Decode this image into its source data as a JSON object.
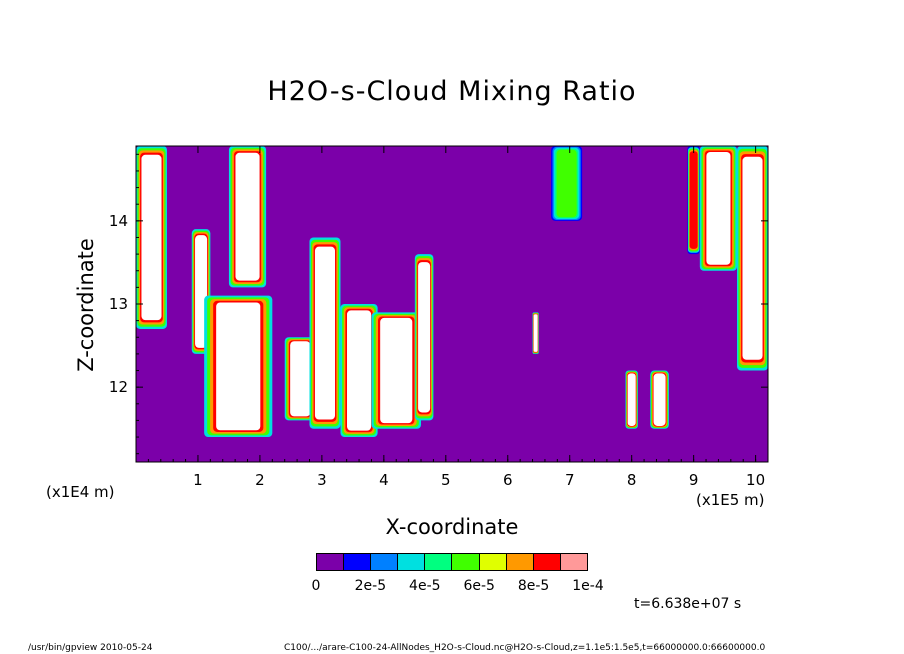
{
  "chart_data": {
    "type": "heatmap",
    "title": "H2O-s-Cloud Mixing Ratio",
    "xlabel": "X-coordinate",
    "ylabel": "Z-coordinate",
    "x_unit": "(x1E5 m)",
    "y_unit": "(x1E4 m)",
    "xlim": [
      0,
      10.2
    ],
    "ylim": [
      11.1,
      14.9
    ],
    "x_ticks": [
      "1",
      "2",
      "3",
      "4",
      "5",
      "6",
      "7",
      "8",
      "9",
      "10"
    ],
    "y_ticks": [
      "12",
      "13",
      "14"
    ],
    "background_color": "#7b00a9",
    "colorbar": {
      "colors": [
        "#7b00a9",
        "#0000ff",
        "#0080ff",
        "#00e0e0",
        "#00ff80",
        "#40ff00",
        "#e0ff00",
        "#ff9900",
        "#ff0000",
        "#ff9999"
      ],
      "labels": [
        "0",
        "2e-5",
        "4e-5",
        "6e-5",
        "8e-5",
        "1e-4"
      ],
      "label_positions": [
        0,
        0.2,
        0.4,
        0.6,
        0.8,
        1.0
      ],
      "range": [
        0,
        0.0001
      ],
      "overflow_color": "#ffffff"
    },
    "cloud_regions": [
      {
        "x": [
          0.0,
          0.5
        ],
        "z": [
          12.7,
          14.9
        ],
        "peak": "high"
      },
      {
        "x": [
          0.9,
          1.2
        ],
        "z": [
          12.4,
          13.9
        ],
        "peak": "high"
      },
      {
        "x": [
          1.1,
          2.2
        ],
        "z": [
          11.4,
          13.1
        ],
        "peak": "high"
      },
      {
        "x": [
          1.5,
          2.1
        ],
        "z": [
          13.2,
          14.9
        ],
        "peak": "high"
      },
      {
        "x": [
          2.4,
          2.9
        ],
        "z": [
          11.6,
          12.6
        ],
        "peak": "high"
      },
      {
        "x": [
          2.8,
          3.3
        ],
        "z": [
          11.5,
          13.8
        ],
        "peak": "high"
      },
      {
        "x": [
          3.3,
          3.9
        ],
        "z": [
          11.4,
          13.0
        ],
        "peak": "high"
      },
      {
        "x": [
          3.8,
          4.6
        ],
        "z": [
          11.5,
          12.9
        ],
        "peak": "high"
      },
      {
        "x": [
          4.5,
          4.8
        ],
        "z": [
          11.6,
          13.6
        ],
        "peak": "high"
      },
      {
        "x": [
          6.4,
          6.5
        ],
        "z": [
          12.4,
          12.9
        ],
        "peak": "high"
      },
      {
        "x": [
          6.7,
          7.2
        ],
        "z": [
          14.0,
          14.9
        ],
        "peak": "low"
      },
      {
        "x": [
          7.9,
          8.1
        ],
        "z": [
          11.5,
          12.2
        ],
        "peak": "high"
      },
      {
        "x": [
          8.3,
          8.6
        ],
        "z": [
          11.5,
          12.2
        ],
        "peak": "high"
      },
      {
        "x": [
          8.9,
          9.1
        ],
        "z": [
          13.6,
          14.9
        ],
        "peak": "mid"
      },
      {
        "x": [
          9.1,
          9.7
        ],
        "z": [
          13.4,
          14.9
        ],
        "peak": "high"
      },
      {
        "x": [
          9.7,
          10.2
        ],
        "z": [
          12.2,
          14.9
        ],
        "peak": "high"
      }
    ]
  },
  "annotations": {
    "time": "t=6.638e+07 s",
    "footer_left": "/usr/bin/gpview  2010-05-24",
    "footer_right": "C100/.../arare-C100-24-AllNodes_H2O-s-Cloud.nc@H2O-s-Cloud,z=1.1e5:1.5e5,t=66000000.0:66600000.0"
  }
}
